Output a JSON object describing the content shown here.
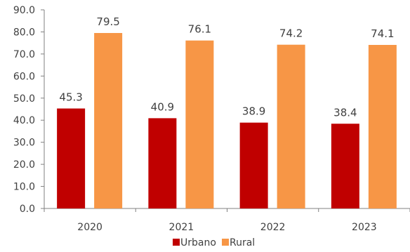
{
  "chart_data": {
    "type": "bar",
    "categories": [
      "2020",
      "2021",
      "2022",
      "2023"
    ],
    "series": [
      {
        "name": "Urbano",
        "values": [
          45.3,
          40.9,
          38.9,
          38.4
        ],
        "color": "#C00000"
      },
      {
        "name": "Rural",
        "values": [
          79.5,
          76.1,
          74.2,
          74.1
        ],
        "color": "#F79646"
      }
    ],
    "data_labels": {
      "Urbano": [
        "45.3",
        "40.9",
        "38.9",
        "38.4"
      ],
      "Rural": [
        "79.5",
        "76.1",
        "74.2",
        "74.1"
      ]
    },
    "ylim": [
      0,
      90
    ],
    "yticks": [
      0,
      10,
      20,
      30,
      40,
      50,
      60,
      70,
      80,
      90
    ],
    "ytick_labels": [
      "0.0",
      "10.0",
      "20.0",
      "30.0",
      "40.0",
      "50.0",
      "60.0",
      "70.0",
      "80.0",
      "90.0"
    ],
    "grid": false,
    "legend_position": "bottom-center",
    "axis_color": "#808080",
    "text_color": "#404040"
  }
}
